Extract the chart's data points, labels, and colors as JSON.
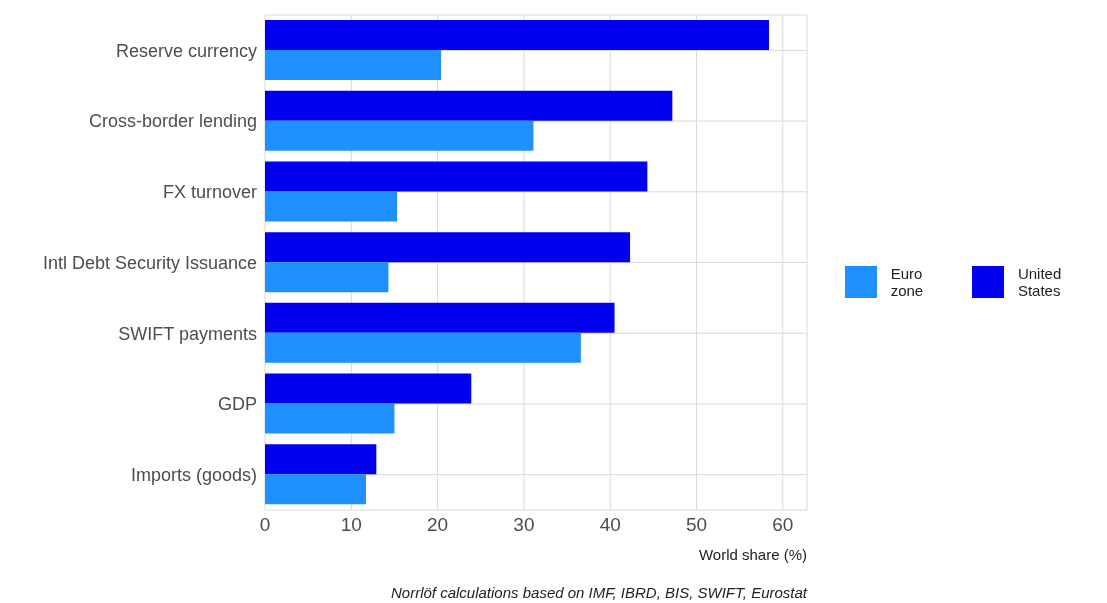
{
  "chart_data": {
    "type": "bar",
    "orientation": "horizontal",
    "xlabel": "World share (%)",
    "categories": [
      "Reserve currency",
      "Cross-border lending",
      "FX turnover",
      "Intl Debt Security Issuance",
      "SWIFT payments",
      "GDP",
      "Imports (goods)"
    ],
    "series": [
      {
        "name": "Euro zone",
        "color": "#1e90ff",
        "values": [
          20.4,
          31.1,
          15.3,
          14.3,
          36.6,
          15.0,
          11.7
        ]
      },
      {
        "name": "United States",
        "color": "#0000ee",
        "values": [
          58.4,
          47.2,
          44.3,
          42.3,
          40.5,
          23.9,
          12.9
        ]
      }
    ],
    "xlim": [
      0,
      62.8
    ],
    "xticks": [
      0,
      10,
      20,
      30,
      40,
      50,
      60
    ],
    "grid": true,
    "legend": "right",
    "annotations": [
      "Norrlöf calculations based on IMF, IBRD, BIS, SWIFT, Eurostat"
    ]
  }
}
